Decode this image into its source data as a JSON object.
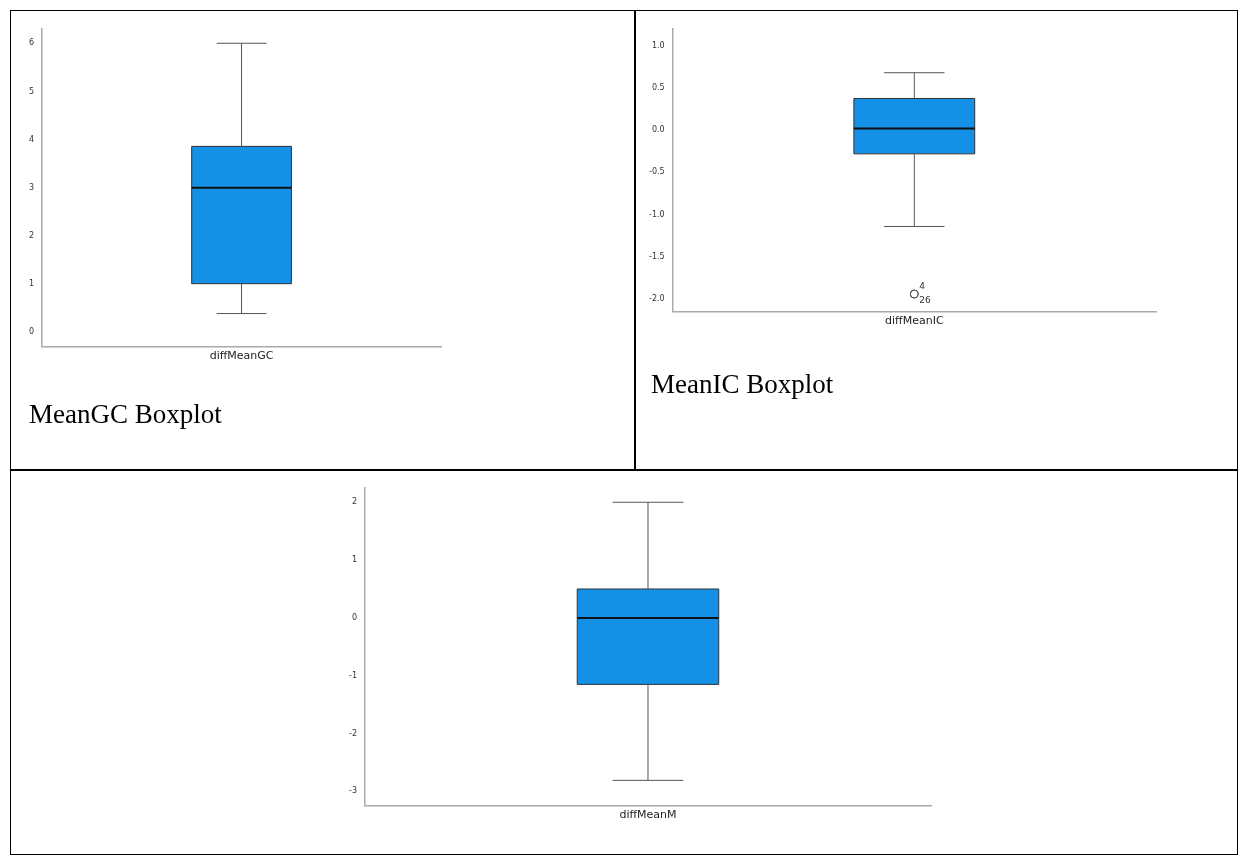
{
  "chart_data": [
    {
      "type": "box",
      "categories": [
        "diffMeanGC"
      ],
      "series": [
        {
          "color": "#1490e6",
          "boxes": [
            {
              "low": 0.39,
              "q1": 1.01,
              "median": 3.0,
              "q3": 3.86,
              "high": 6.0
            }
          ]
        }
      ],
      "ylim": [
        -0.3,
        6.3
      ],
      "yticks": [
        0,
        1,
        2,
        3,
        4,
        5,
        6
      ],
      "grid": false,
      "annotations": [
        "MeanGC Boxplot"
      ]
    },
    {
      "type": "box",
      "categories": [
        "diffMeanIC"
      ],
      "series": [
        {
          "color": "#1490e6",
          "boxes": [
            {
              "low": -1.14,
              "q1": -0.28,
              "median": 0.02,
              "q3": 0.375,
              "high": 0.68,
              "outliers": [
                -1.94,
                -1.94
              ]
            }
          ]
        }
      ],
      "ylim": [
        -2.15,
        1.2
      ],
      "yticks": [
        {
          "value": -2,
          "label": "-2.0"
        },
        {
          "value": -1.5,
          "label": "-1.5"
        },
        {
          "value": -1,
          "label": "-1.0"
        },
        {
          "value": -0.5,
          "label": "-0.5"
        },
        {
          "value": 0,
          "label": "0.0"
        },
        {
          "value": 0.5,
          "label": "0.5"
        },
        {
          "value": 1,
          "label": "1.0"
        }
      ],
      "grid": false,
      "annotations": [
        "MeanIC Boxplot",
        "4",
        "26"
      ]
    },
    {
      "type": "box",
      "categories": [
        "diffMeanM"
      ],
      "series": [
        {
          "color": "#1490e6",
          "boxes": [
            {
              "low": -2.81,
              "q1": -1.15,
              "median": 0.0,
              "q3": 0.5,
              "high": 2.0
            }
          ]
        }
      ],
      "ylim": [
        -3.25,
        2.25
      ],
      "yticks": [
        -3,
        -2,
        -1,
        0,
        1,
        2
      ],
      "grid": false
    }
  ]
}
